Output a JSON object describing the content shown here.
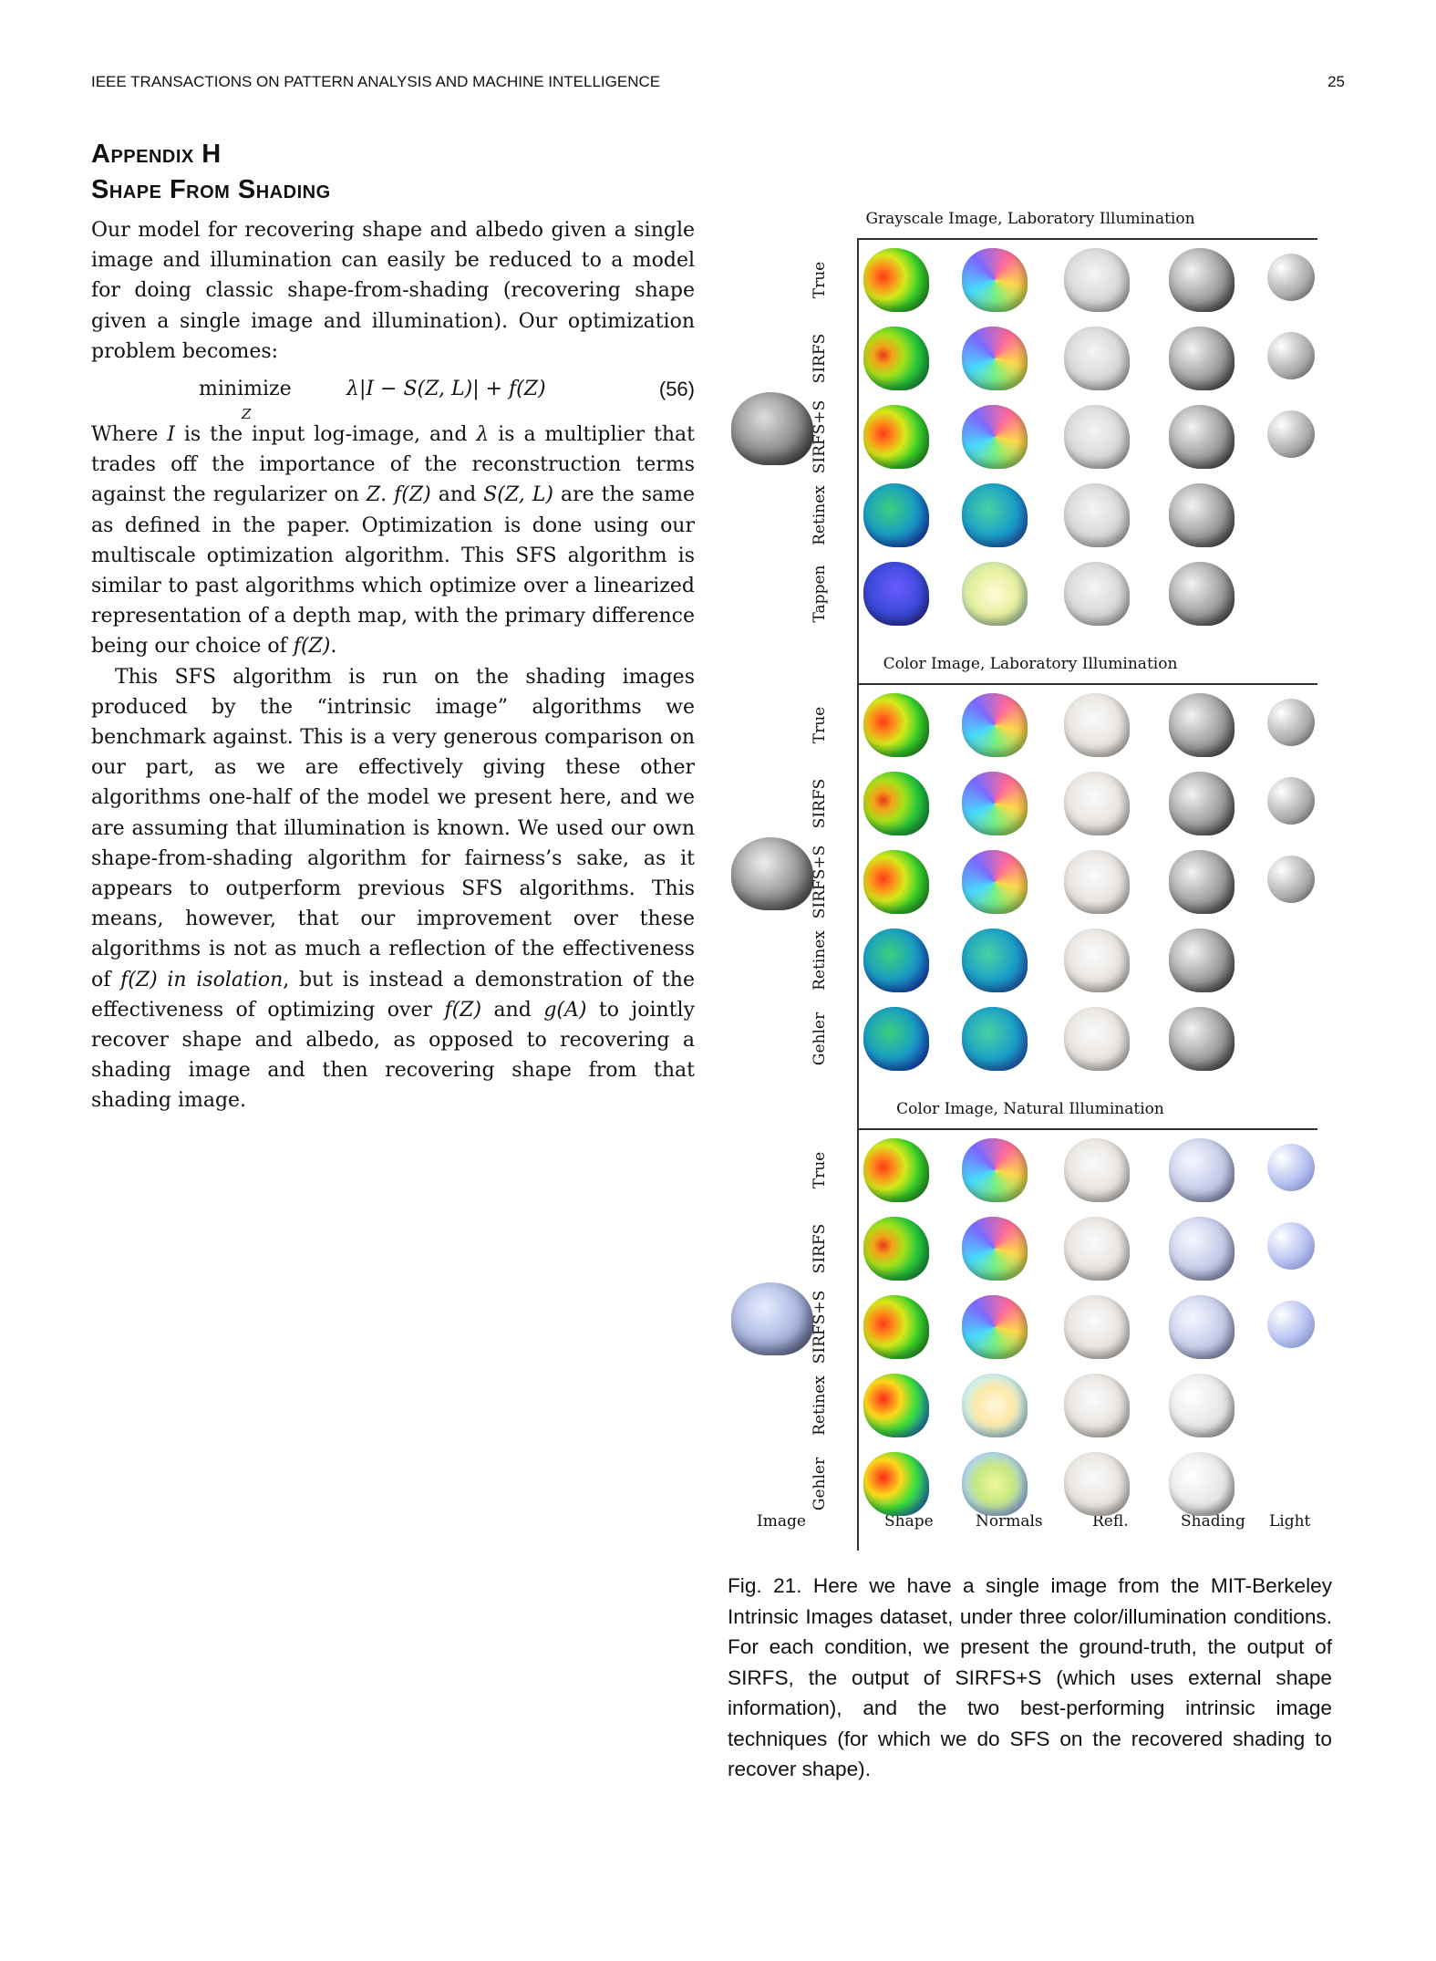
{
  "header": {
    "journal": "IEEE TRANSACTIONS ON PATTERN ANALYSIS AND MACHINE INTELLIGENCE",
    "page_number": "25"
  },
  "section": {
    "line1": "Appendix H",
    "line2": "Shape From Shading"
  },
  "paragraph1": "Our model for recovering shape and albedo given a single image and illumination can easily be reduced to a model for doing classic shape-from-shading (recovering shape given a single image and illumination). Our optimization problem becomes:",
  "equation": {
    "operator": "minimize",
    "subscript": "Z",
    "expression": "λ|I − S(Z, L)| + f(Z)",
    "number": "(56)"
  },
  "paragraph2": {
    "p1": "Where ",
    "I": "I",
    "p2": " is the input log-image, and ",
    "lambda": "λ",
    "p3": " is a multiplier that trades off the importance of the reconstruction terms against the regularizer on ",
    "Z": "Z",
    "p4": ". ",
    "fZ": "f(Z)",
    "p5": " and ",
    "SZL": "S(Z, L)",
    "p6": " are the same as defined in the paper. Optimization is done using our multiscale optimization algorithm. This SFS algorithm is similar to past algorithms which optimize over a linearized representation of a depth map, with the primary difference being our choice of ",
    "fZ2": "f(Z)",
    "p7": "."
  },
  "paragraph3": {
    "p1": "This SFS algorithm is run on the shading images produced by the “intrinsic image” algorithms we benchmark against. This is a very generous comparison on our part, as we are effectively giving these other algorithms one-half of the model we present here, and we are assuming that illumination is known. We used our own shape-from-shading algorithm for fairness’s sake, as it appears to outperform previous SFS algorithms. This means, however, that our improvement over these algorithms is not as much a reflection of the effectiveness of ",
    "fZ": "f(Z)",
    "italic": " in isolation",
    "p2": ", but is instead a demonstration of the effectiveness of optimizing over ",
    "fZ2": "f(Z)",
    "p3": " and ",
    "gA": "g(A)",
    "p4": " to jointly recover shape and albedo, as opposed to recovering a shading image and then recovering shape from that shading image."
  },
  "figure": {
    "panels": [
      {
        "title": "Grayscale Image, Laboratory Illumination",
        "rows": [
          "True",
          "SIRFS",
          "SIRFS+S",
          "Retinex",
          "Tappen"
        ]
      },
      {
        "title": "Color Image, Laboratory Illumination",
        "rows": [
          "True",
          "SIRFS",
          "SIRFS+S",
          "Retinex",
          "Gehler"
        ]
      },
      {
        "title": "Color Image, Natural Illumination",
        "rows": [
          "True",
          "SIRFS",
          "SIRFS+S",
          "Retinex",
          "Gehler"
        ]
      }
    ],
    "column_labels": {
      "image": "Image",
      "shape": "Shape",
      "normals": "Normals",
      "refl": "Refl.",
      "shading": "Shading",
      "light": "Light"
    }
  },
  "caption": "Fig. 21.   Here we have a single image from the MIT-Berkeley Intrinsic Images dataset, under three color/illumination conditions. For each condition, we present the ground-truth, the output of SIRFS, the output of SIRFS+S (which uses external shape information), and the two best-performing intrinsic image techniques (for which we do SFS on the recovered shading to recover shape)."
}
